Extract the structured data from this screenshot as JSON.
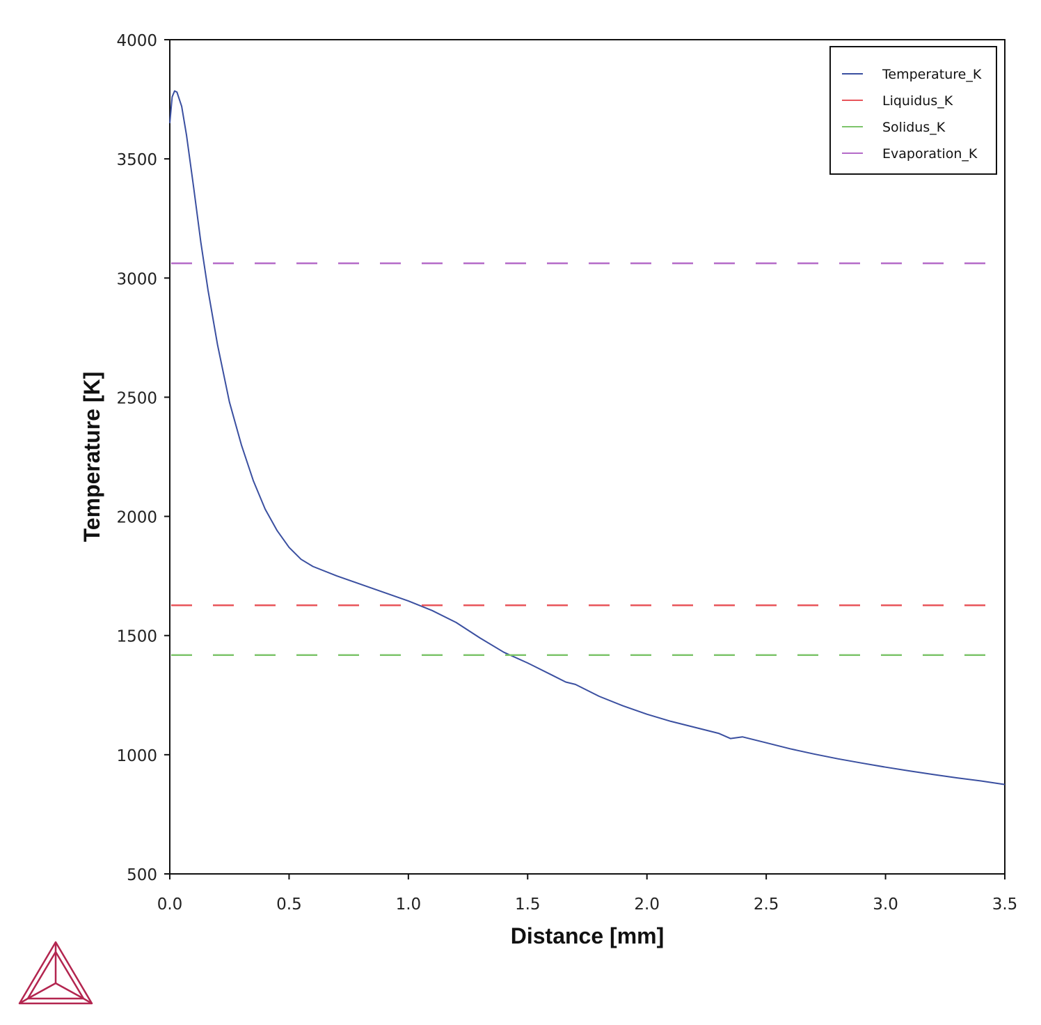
{
  "chart_data": {
    "type": "line",
    "xlabel": "Distance [mm]",
    "ylabel": "Temperature [K]",
    "xlim": [
      0,
      3.5
    ],
    "ylim": [
      500,
      4000
    ],
    "x_ticks": [
      "0.0",
      "0.5",
      "1.0",
      "1.5",
      "2.0",
      "2.5",
      "3.0",
      "3.5"
    ],
    "y_ticks": [
      "500",
      "1000",
      "1500",
      "2000",
      "2500",
      "3000",
      "3500",
      "4000"
    ],
    "grid": false,
    "legend_position": "top-right",
    "series": [
      {
        "name": "Temperature_K",
        "color": "#3a4fa0",
        "style": "solid",
        "x": [
          0.0,
          0.01,
          0.02,
          0.03,
          0.05,
          0.07,
          0.1,
          0.13,
          0.16,
          0.2,
          0.25,
          0.3,
          0.35,
          0.4,
          0.45,
          0.5,
          0.55,
          0.6,
          0.7,
          0.8,
          0.9,
          1.0,
          1.1,
          1.2,
          1.3,
          1.4,
          1.5,
          1.6,
          1.66,
          1.7,
          1.8,
          1.9,
          2.0,
          2.1,
          2.2,
          2.3,
          2.35,
          2.4,
          2.5,
          2.6,
          2.7,
          2.8,
          2.9,
          3.0,
          3.1,
          3.2,
          3.3,
          3.4,
          3.5
        ],
        "y": [
          3650,
          3760,
          3785,
          3780,
          3720,
          3600,
          3380,
          3150,
          2950,
          2720,
          2480,
          2300,
          2150,
          2030,
          1940,
          1870,
          1820,
          1790,
          1750,
          1715,
          1680,
          1645,
          1605,
          1555,
          1490,
          1430,
          1385,
          1335,
          1305,
          1295,
          1245,
          1205,
          1170,
          1140,
          1115,
          1090,
          1068,
          1075,
          1050,
          1025,
          1003,
          983,
          965,
          948,
          932,
          917,
          903,
          890,
          875
        ]
      },
      {
        "name": "Liquidus_K",
        "color": "#e8545a",
        "style": "dashed",
        "x": [
          0.0,
          3.5
        ],
        "y": [
          1627,
          1627
        ]
      },
      {
        "name": "Solidus_K",
        "color": "#7cc46a",
        "style": "dashed",
        "x": [
          0.0,
          3.5
        ],
        "y": [
          1418,
          1418
        ]
      },
      {
        "name": "Evaporation_K",
        "color": "#b46ac8",
        "style": "dashed",
        "x": [
          0.0,
          3.5
        ],
        "y": [
          3062,
          3062
        ]
      }
    ]
  },
  "logo": {
    "name": "thermo-calc-logo-icon",
    "color": "#b3254f"
  }
}
